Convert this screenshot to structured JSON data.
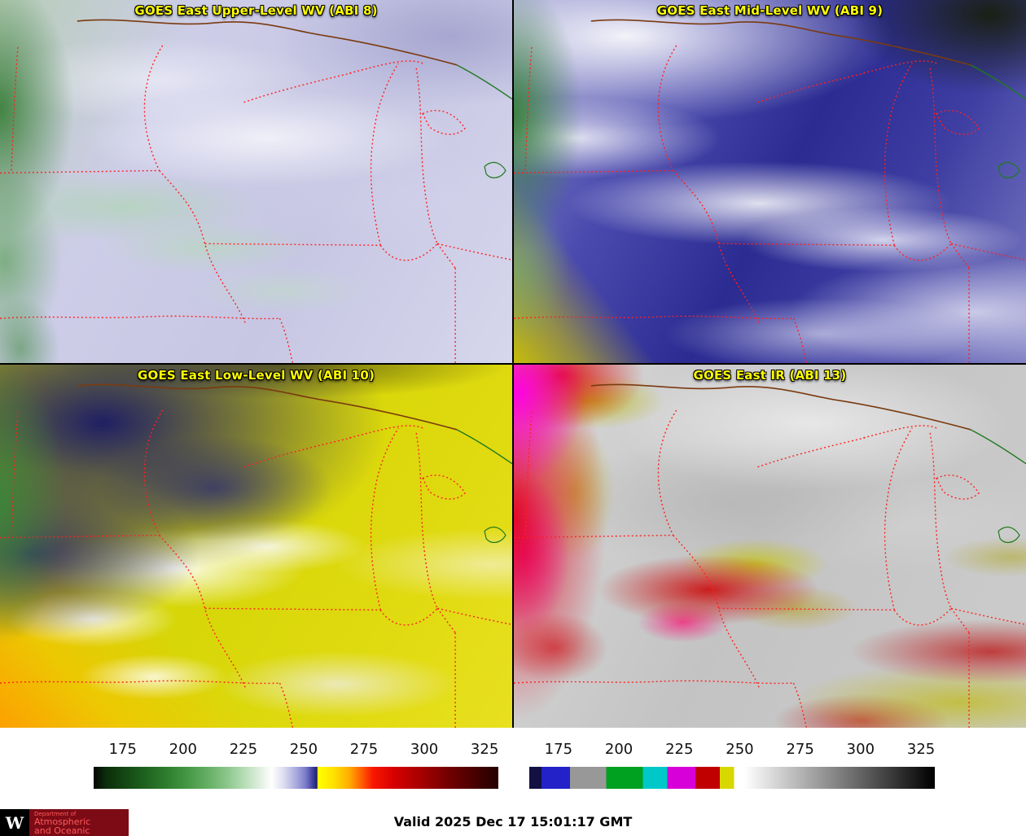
{
  "panels": [
    {
      "title": "GOES East Upper-Level WV (ABI 8)"
    },
    {
      "title": "GOES East Mid-Level WV (ABI 9)"
    },
    {
      "title": "GOES East Low-Level WV (ABI 10)"
    },
    {
      "title": "GOES East IR (ABI 13)"
    }
  ],
  "colorbars": [
    {
      "id": "water-vapor-enhancement",
      "ticks": [
        "175",
        "200",
        "225",
        "250",
        "275",
        "300",
        "325"
      ],
      "tick_positions": [
        7.2,
        22.1,
        37.0,
        51.9,
        66.8,
        81.7,
        96.6
      ],
      "stops": [
        [
          0,
          "#050505"
        ],
        [
          3,
          "#0b2d0b"
        ],
        [
          7.2,
          "#134413"
        ],
        [
          12,
          "#1d5e1d"
        ],
        [
          18,
          "#2e7d2e"
        ],
        [
          22.1,
          "#3f923f"
        ],
        [
          28,
          "#63ae63"
        ],
        [
          33,
          "#8cc68c"
        ],
        [
          37,
          "#b4dcb4"
        ],
        [
          41,
          "#dfeedf"
        ],
        [
          44,
          "#ffffff"
        ],
        [
          47,
          "#dcdcf0"
        ],
        [
          50,
          "#aaaade"
        ],
        [
          52.5,
          "#7878c8"
        ],
        [
          54,
          "#4444a0"
        ],
        [
          55.2,
          "#20206a"
        ],
        [
          55.4,
          "#ffff00"
        ],
        [
          59,
          "#ffe400"
        ],
        [
          63,
          "#ffb000"
        ],
        [
          66.8,
          "#ff5000"
        ],
        [
          69,
          "#f81800"
        ],
        [
          74,
          "#d80000"
        ],
        [
          81.7,
          "#a00000"
        ],
        [
          88,
          "#700000"
        ],
        [
          96.6,
          "#380000"
        ],
        [
          100,
          "#250000"
        ]
      ]
    },
    {
      "id": "infrared-enhancement",
      "ticks": [
        "175",
        "200",
        "225",
        "250",
        "275",
        "300",
        "325"
      ],
      "tick_positions": [
        7.2,
        22.1,
        37.0,
        51.9,
        66.8,
        81.7,
        96.6
      ],
      "stops": [
        [
          0,
          "#131043"
        ],
        [
          3,
          "#131043"
        ],
        [
          3,
          "#2222c8"
        ],
        [
          10,
          "#2222c8"
        ],
        [
          10,
          "#989898"
        ],
        [
          19,
          "#989898"
        ],
        [
          19,
          "#00a020"
        ],
        [
          28,
          "#00a020"
        ],
        [
          28,
          "#00c8c8"
        ],
        [
          34,
          "#00c8c8"
        ],
        [
          34,
          "#d800d8"
        ],
        [
          41,
          "#d800d8"
        ],
        [
          41,
          "#c00000"
        ],
        [
          47,
          "#c00000"
        ],
        [
          47,
          "#d8d800"
        ],
        [
          50.5,
          "#d8d800"
        ],
        [
          50.5,
          "#ffffff"
        ],
        [
          53,
          "#ffffff"
        ],
        [
          100,
          "#000000"
        ]
      ]
    }
  ],
  "footer": {
    "valid_label": "Valid 2025 Dec 17 15:01:17 GMT",
    "logo": {
      "letter": "W",
      "line1": "Department of",
      "line2": "Atmospheric",
      "line3": "and Oceanic Sciences"
    }
  },
  "colors": {
    "panel_title": "#ffff00",
    "state_border": "#ff2020",
    "national_border": "#7a3b10",
    "lake_outline": "#1f7a1f",
    "logo_background": "#7d0b16",
    "logo_text": "#ff5a5a"
  }
}
